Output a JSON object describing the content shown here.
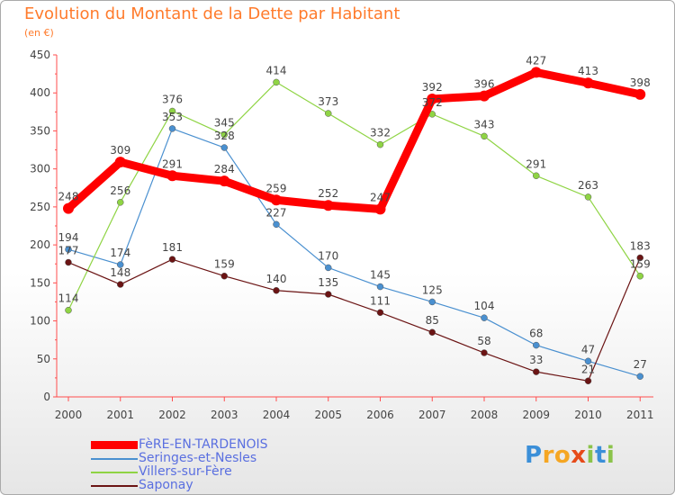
{
  "header": {
    "title": "Evolution du Montant de la Dette par Habitant",
    "unit": "(en €)"
  },
  "chart_data": {
    "type": "line",
    "title": "Evolution du Montant de la Dette par Habitant",
    "ylabel": "(en €)",
    "xlabel": "",
    "x": [
      "2000",
      "2001",
      "2002",
      "2003",
      "2004",
      "2005",
      "2006",
      "2007",
      "2008",
      "2009",
      "2010",
      "2011"
    ],
    "ylim": [
      0,
      450
    ],
    "yticks": [
      0,
      50,
      100,
      150,
      200,
      250,
      300,
      350,
      400,
      450
    ],
    "grid": false,
    "legend_position": "bottom-left",
    "series": [
      {
        "name": "FèRE-EN-TARDENOIS",
        "color": "#ff0000",
        "values": [
          248,
          309,
          291,
          284,
          259,
          252,
          247,
          392,
          396,
          427,
          413,
          398
        ]
      },
      {
        "name": "Seringes-et-Nesles",
        "color": "#4a90d0",
        "values": [
          194,
          174,
          353,
          328,
          227,
          170,
          145,
          125,
          104,
          68,
          47,
          27
        ]
      },
      {
        "name": "Villers-sur-Fère",
        "color": "#8fd444",
        "values": [
          114,
          256,
          376,
          345,
          414,
          373,
          332,
          372,
          343,
          291,
          263,
          159
        ]
      },
      {
        "name": "Saponay",
        "color": "#6b1414",
        "values": [
          177,
          148,
          181,
          159,
          140,
          135,
          111,
          85,
          58,
          33,
          21,
          183
        ]
      }
    ],
    "point_labels": [
      [
        "248",
        "309",
        "291",
        "284",
        "259",
        "252",
        "247",
        "392",
        "396",
        "427",
        "413",
        "398"
      ],
      [
        "194",
        "174",
        "353",
        "328",
        "227",
        "170",
        "145",
        "125",
        "104",
        "68",
        "47",
        "27"
      ],
      [
        "114",
        "256",
        "376",
        "345",
        "414",
        "373",
        "332",
        "372",
        "343",
        "291",
        "263",
        "159"
      ],
      [
        "177",
        "148",
        "181",
        "159",
        "140",
        "135",
        "111",
        "85",
        "58",
        "33",
        "21",
        "183"
      ]
    ]
  },
  "logo": {
    "letters": [
      "P",
      "r",
      "o",
      "x",
      "i",
      "t",
      "i"
    ],
    "colors": [
      "#3b8fd8",
      "#f5a623",
      "#f5a623",
      "#e64a19",
      "#8bc34a",
      "#3b8fd8",
      "#8bc34a"
    ]
  }
}
